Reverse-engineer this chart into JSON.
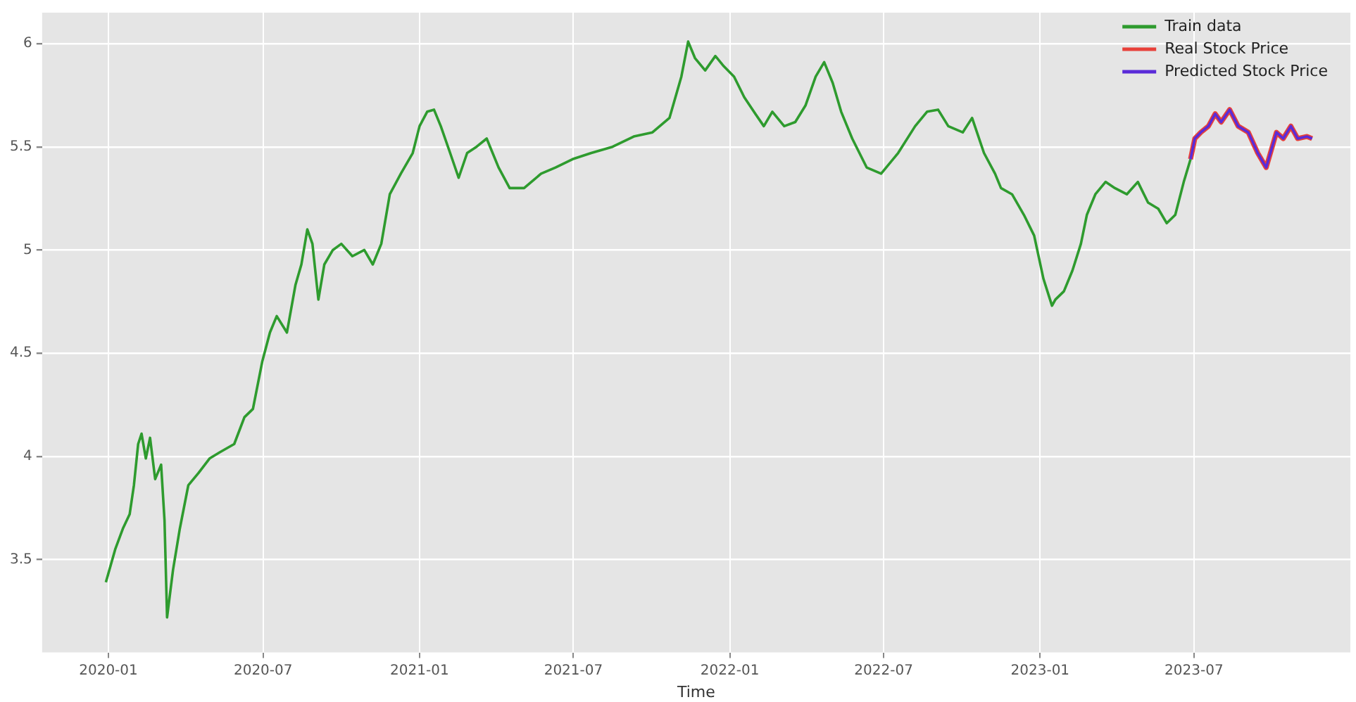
{
  "chart_data": {
    "type": "line",
    "xlabel": "Time",
    "xlim": [
      "2019-10-15",
      "2024-01-01"
    ],
    "xticks": [
      "2020-01",
      "2020-07",
      "2021-01",
      "2021-07",
      "2022-01",
      "2022-07",
      "2023-01",
      "2023-07"
    ],
    "ylim": [
      3.05,
      6.15
    ],
    "yticks": [
      3.5,
      4.0,
      4.5,
      5.0,
      5.5,
      6.0
    ],
    "grid": true,
    "legend": "top right",
    "marker": "none",
    "line_style": "solid",
    "series": [
      {
        "name": "Train data",
        "color": "#2e9b2e",
        "x": [
          "2019-12-29",
          "2020-01-09",
          "2020-01-18",
          "2020-01-26",
          "2020-01-31",
          "2020-02-05",
          "2020-02-09",
          "2020-02-14",
          "2020-02-19",
          "2020-02-25",
          "2020-03-03",
          "2020-03-07",
          "2020-03-10",
          "2020-03-17",
          "2020-03-25",
          "2020-04-04",
          "2020-04-16",
          "2020-04-29",
          "2020-05-11",
          "2020-05-28",
          "2020-06-09",
          "2020-06-19",
          "2020-06-30",
          "2020-07-09",
          "2020-07-17",
          "2020-07-29",
          "2020-08-08",
          "2020-08-15",
          "2020-08-22",
          "2020-08-28",
          "2020-09-04",
          "2020-09-11",
          "2020-09-21",
          "2020-10-01",
          "2020-10-14",
          "2020-10-28",
          "2020-11-07",
          "2020-11-17",
          "2020-11-27",
          "2020-12-10",
          "2020-12-24",
          "2021-01-01",
          "2021-01-10",
          "2021-01-18",
          "2021-01-26",
          "2021-02-06",
          "2021-02-16",
          "2021-02-26",
          "2021-03-09",
          "2021-03-21",
          "2021-04-04",
          "2021-04-17",
          "2021-05-04",
          "2021-05-24",
          "2021-06-10",
          "2021-06-30",
          "2021-07-22",
          "2021-08-16",
          "2021-09-10",
          "2021-10-02",
          "2021-10-22",
          "2021-11-05",
          "2021-11-13",
          "2021-11-21",
          "2021-12-03",
          "2021-12-15",
          "2021-12-25",
          "2022-01-06",
          "2022-01-18",
          "2022-01-31",
          "2022-02-10",
          "2022-02-20",
          "2022-03-06",
          "2022-03-19",
          "2022-03-31",
          "2022-04-12",
          "2022-04-22",
          "2022-05-02",
          "2022-05-12",
          "2022-05-25",
          "2022-06-11",
          "2022-06-28",
          "2022-07-18",
          "2022-08-07",
          "2022-08-21",
          "2022-09-03",
          "2022-09-15",
          "2022-10-02",
          "2022-10-13",
          "2022-10-27",
          "2022-11-09",
          "2022-11-16",
          "2022-11-29",
          "2022-12-13",
          "2022-12-25",
          "2023-01-05",
          "2023-01-15",
          "2023-01-19",
          "2023-01-29",
          "2023-02-08",
          "2023-02-18",
          "2023-02-25",
          "2023-03-07",
          "2023-03-19",
          "2023-03-30",
          "2023-04-13",
          "2023-04-26",
          "2023-05-08",
          "2023-05-20",
          "2023-05-30",
          "2023-06-09",
          "2023-06-19",
          "2023-06-27"
        ],
        "values": [
          3.39,
          3.55,
          3.65,
          3.72,
          3.86,
          4.06,
          4.11,
          3.99,
          4.09,
          3.89,
          3.96,
          3.69,
          3.22,
          3.45,
          3.65,
          3.86,
          3.92,
          3.99,
          4.02,
          4.06,
          4.19,
          4.23,
          4.46,
          4.6,
          4.68,
          4.6,
          4.83,
          4.93,
          5.1,
          5.03,
          4.76,
          4.93,
          5.0,
          5.03,
          4.97,
          5.0,
          4.93,
          5.03,
          5.27,
          5.37,
          5.47,
          5.6,
          5.67,
          5.68,
          5.6,
          5.47,
          5.35,
          5.47,
          5.5,
          5.54,
          5.4,
          5.3,
          5.3,
          5.37,
          5.4,
          5.44,
          5.47,
          5.5,
          5.55,
          5.57,
          5.64,
          5.84,
          6.01,
          5.93,
          5.87,
          5.94,
          5.89,
          5.84,
          5.74,
          5.66,
          5.6,
          5.67,
          5.6,
          5.62,
          5.7,
          5.84,
          5.91,
          5.81,
          5.67,
          5.54,
          5.4,
          5.37,
          5.47,
          5.6,
          5.67,
          5.68,
          5.6,
          5.57,
          5.64,
          5.47,
          5.37,
          5.3,
          5.27,
          5.17,
          5.07,
          4.86,
          4.73,
          4.76,
          4.8,
          4.9,
          5.03,
          5.17,
          5.27,
          5.33,
          5.3,
          5.27,
          5.33,
          5.23,
          5.2,
          5.13,
          5.17,
          5.33,
          5.44
        ]
      },
      {
        "name": "Real Stock Price",
        "color": "#e8413a",
        "x": [
          "2023-06-27",
          "2023-07-02",
          "2023-07-09",
          "2023-07-18",
          "2023-07-26",
          "2023-08-02",
          "2023-08-12",
          "2023-08-22",
          "2023-09-03",
          "2023-09-14",
          "2023-09-24",
          "2023-10-06",
          "2023-10-14",
          "2023-10-23",
          "2023-10-31",
          "2023-11-11",
          "2023-11-17"
        ],
        "values": [
          5.44,
          5.54,
          5.57,
          5.6,
          5.66,
          5.62,
          5.68,
          5.6,
          5.57,
          5.47,
          5.4,
          5.57,
          5.54,
          5.6,
          5.54,
          5.55,
          5.54
        ]
      },
      {
        "name": "Predicted Stock Price",
        "color": "#5a2bd8",
        "x": [
          "2023-06-27",
          "2023-07-02",
          "2023-07-09",
          "2023-07-18",
          "2023-07-26",
          "2023-08-02",
          "2023-08-12",
          "2023-08-22",
          "2023-09-03",
          "2023-09-14",
          "2023-09-24",
          "2023-10-06",
          "2023-10-14",
          "2023-10-23",
          "2023-10-31",
          "2023-11-11",
          "2023-11-17"
        ],
        "values": [
          5.44,
          5.54,
          5.57,
          5.6,
          5.66,
          5.62,
          5.68,
          5.6,
          5.57,
          5.47,
          5.4,
          5.57,
          5.54,
          5.6,
          5.54,
          5.55,
          5.54
        ]
      }
    ]
  }
}
